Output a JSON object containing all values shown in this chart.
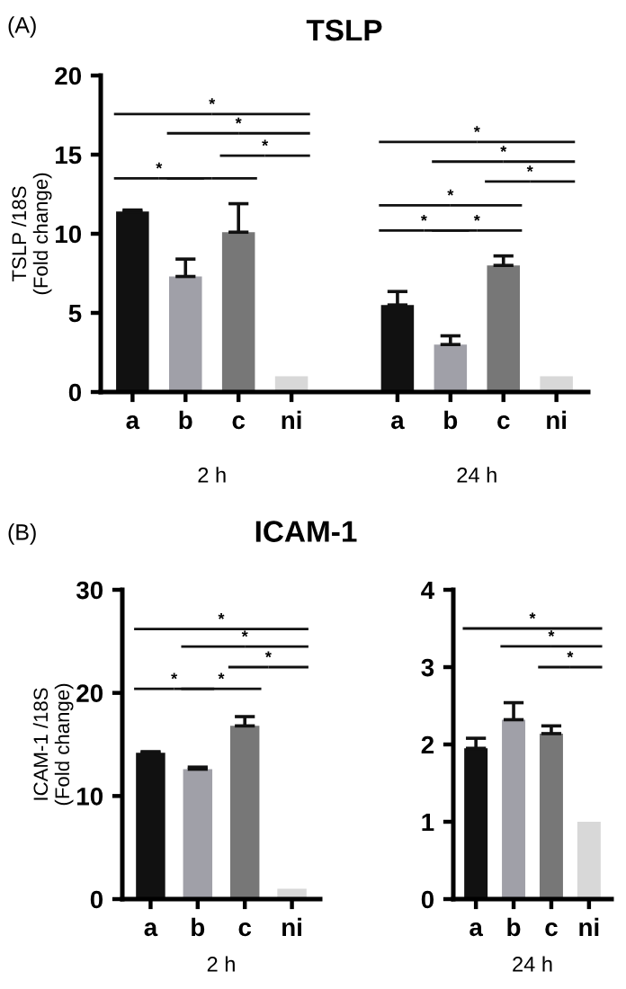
{
  "chart_data": [
    {
      "type": "bar",
      "title": "TSLP",
      "ylabel": "TSLP /18S\n(Fold change)",
      "categories": [
        "a",
        "b",
        "c",
        "ni",
        null,
        "a",
        "b",
        "c",
        "ni"
      ],
      "values": [
        11.4,
        7.3,
        10.1,
        1.0,
        null,
        5.5,
        3.0,
        8.0,
        1.0
      ],
      "colors": [
        "#111111",
        "#a0a0a8",
        "#777777",
        "#d8d8d8",
        "#ffffff",
        "#111111",
        "#a0a0a8",
        "#777777",
        "#d8d8d8"
      ],
      "errors": [
        [
          11.4,
          11.5
        ],
        [
          7.3,
          8.4
        ],
        [
          10.1,
          11.9
        ],
        null,
        null,
        [
          5.5,
          6.35
        ],
        [
          3.0,
          3.55
        ],
        [
          8.0,
          8.6
        ],
        null
      ],
      "ylim": [
        0,
        20
      ],
      "yticks": [
        0,
        5,
        10,
        15,
        20
      ],
      "grid": false,
      "legend": false,
      "annotations": [
        "(A)",
        "2 h",
        "24 h",
        "*",
        "*",
        "*",
        "*",
        "*",
        "*",
        "*",
        "*",
        "*",
        "*"
      ]
    },
    {
      "type": "bar",
      "title": "ICAM-1",
      "ylabel": "ICAM-1 /18S\n(Fold change)",
      "xlabel": "2 h",
      "categories": [
        "a",
        "b",
        "c",
        "ni"
      ],
      "values": [
        14.2,
        12.6,
        16.8,
        1.0
      ],
      "colors": [
        "#111111",
        "#a0a0a8",
        "#777777",
        "#d8d8d8"
      ],
      "errors": [
        [
          14.2,
          14.3
        ],
        [
          12.6,
          12.8
        ],
        [
          16.8,
          17.7
        ],
        null
      ],
      "ylim": [
        0,
        30
      ],
      "yticks": [
        0,
        10,
        20,
        30
      ],
      "grid": false,
      "legend": false,
      "annotations": [
        "(B)",
        "*",
        "*",
        "*",
        "*",
        "*"
      ]
    },
    {
      "type": "bar",
      "xlabel": "24 h",
      "categories": [
        "a",
        "b",
        "c",
        "ni"
      ],
      "values": [
        1.95,
        2.32,
        2.14,
        1.0
      ],
      "colors": [
        "#111111",
        "#a0a0a8",
        "#777777",
        "#d8d8d8"
      ],
      "errors": [
        [
          1.95,
          2.08
        ],
        [
          2.32,
          2.54
        ],
        [
          2.14,
          2.24
        ],
        null
      ],
      "ylim": [
        0,
        4
      ],
      "yticks": [
        0,
        1,
        2,
        3,
        4
      ],
      "grid": false,
      "legend": false,
      "annotations": [
        "*",
        "*",
        "*"
      ]
    }
  ]
}
